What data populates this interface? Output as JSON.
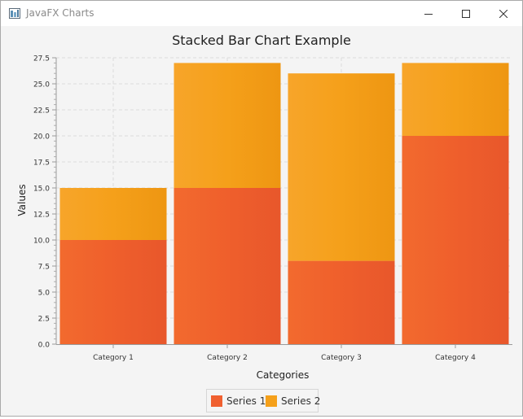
{
  "window": {
    "title": "JavaFX Charts",
    "controls": [
      "minimize",
      "maximize",
      "close"
    ]
  },
  "colors": {
    "series1": "#f06030",
    "series2": "#f5a01a",
    "background": "#f4f4f4",
    "gridline": "#dcdcdc"
  },
  "chart_data": {
    "type": "bar",
    "stacked": true,
    "title": "Stacked Bar Chart Example",
    "xlabel": "Categories",
    "ylabel": "Values",
    "categories": [
      "Category 1",
      "Category 2",
      "Category 3",
      "Category 4"
    ],
    "series": [
      {
        "name": "Series 1",
        "values": [
          10,
          15,
          8,
          20
        ]
      },
      {
        "name": "Series 2",
        "values": [
          5,
          12,
          18,
          7
        ]
      }
    ],
    "ylim": [
      0,
      27.5
    ],
    "yticks": [
      "0.0",
      "2.5",
      "5.0",
      "7.5",
      "10.0",
      "12.5",
      "15.0",
      "17.5",
      "20.0",
      "22.5",
      "25.0",
      "27.5"
    ],
    "grid": true,
    "legend_position": "bottom"
  }
}
